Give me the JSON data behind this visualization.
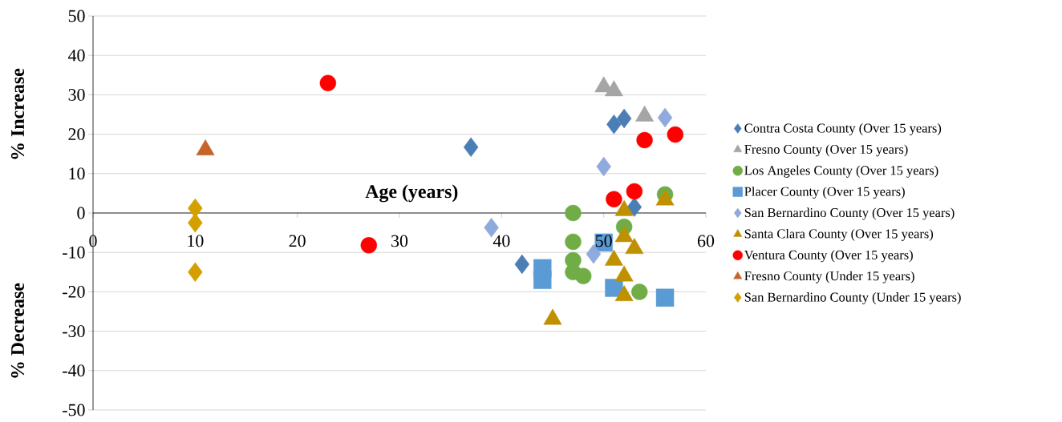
{
  "chart_data": {
    "type": "scatter",
    "xlabel": "Age (years)",
    "ylabel": "% Increase",
    "annotations": [
      "% Decrease"
    ],
    "xlim": [
      0,
      60
    ],
    "xticks": [
      0,
      10,
      20,
      30,
      40,
      50,
      60
    ],
    "ylim": [
      -50,
      50
    ],
    "yticks": [
      -50,
      -40,
      -30,
      -20,
      -10,
      0,
      10,
      20,
      30,
      40,
      50
    ],
    "grid": "y",
    "legend": "right",
    "series": [
      {
        "name": "Contra Costa County (Over 15 years)",
        "color": "#4a7eb5",
        "marker": "diamond",
        "x": [
          37,
          42,
          51,
          52,
          53
        ],
        "values": [
          16.7,
          -13,
          22.5,
          24,
          1.5
        ]
      },
      {
        "name": "Fresno County (Over 15 years)",
        "color": "#a5a5a5",
        "marker": "triangle",
        "x": [
          50,
          51,
          54
        ],
        "values": [
          32,
          31,
          24.6
        ]
      },
      {
        "name": "Los Angeles County (Over 15 years)",
        "color": "#70ad47",
        "marker": "circle",
        "x": [
          47,
          47,
          47,
          47,
          48,
          52,
          53.5,
          56
        ],
        "values": [
          0,
          -7.3,
          -12,
          -15,
          -16,
          -3.5,
          -20,
          4.7
        ]
      },
      {
        "name": "Placer County (Over 15 years)",
        "color": "#5b9bd5",
        "marker": "square",
        "x": [
          44,
          44,
          50,
          51,
          56
        ],
        "values": [
          -14,
          -17,
          -7.5,
          -19,
          -21.5
        ]
      },
      {
        "name": "San Bernardino County (Over 15 years)",
        "color": "#8faadc",
        "marker": "diamond",
        "x": [
          39,
          49,
          50,
          56
        ],
        "values": [
          -3.7,
          -10.4,
          11.8,
          24.2
        ]
      },
      {
        "name": "Santa Clara County (Over 15 years)",
        "color": "#bf9000",
        "marker": "triangle",
        "x": [
          45,
          52,
          52,
          53,
          51,
          52,
          52,
          56
        ],
        "values": [
          -27,
          0.6,
          -6,
          -9,
          -12,
          -16,
          -21,
          3.3
        ]
      },
      {
        "name": "Ventura County (Over 15 years)",
        "color": "#ff0000",
        "marker": "circle",
        "x": [
          23,
          27,
          54,
          57,
          51,
          53
        ],
        "values": [
          33,
          -8.2,
          18.5,
          19.9,
          3.5,
          5.5
        ]
      },
      {
        "name": "Fresno County (Under 15 years)",
        "color": "#c5652a",
        "marker": "triangle",
        "x": [
          11
        ],
        "values": [
          16
        ]
      },
      {
        "name": "San Bernardino County (Under 15 years)",
        "color": "#d4a000",
        "marker": "diamond",
        "x": [
          10,
          10,
          10
        ],
        "values": [
          1.2,
          -2.5,
          -15
        ]
      }
    ]
  }
}
